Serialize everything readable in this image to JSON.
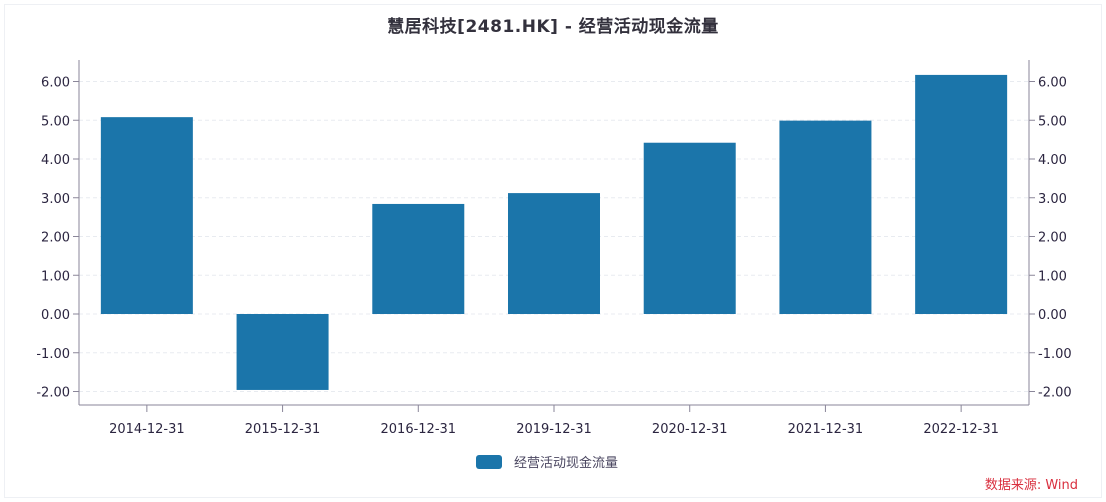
{
  "header": {
    "title": "慧居科技[2481.HK] - 经营活动现金流量"
  },
  "legend": {
    "label": "经营活动现金流量"
  },
  "source": "数据来源: Wind",
  "colors": {
    "bar": "#1b75aa",
    "axis": "#8a8699",
    "grid": "#e8ebf0",
    "source_text": "#d9303f"
  },
  "chart_data": {
    "type": "bar",
    "title": "慧居科技[2481.HK] - 经营活动现金流量",
    "xlabel": "",
    "ylabel": "",
    "categories": [
      "2014-12-31",
      "2015-12-31",
      "2016-12-31",
      "2019-12-31",
      "2020-12-31",
      "2021-12-31",
      "2022-12-31"
    ],
    "series": [
      {
        "name": "经营活动现金流量",
        "values": [
          5.08,
          -1.96,
          2.84,
          3.12,
          4.42,
          4.99,
          6.17
        ]
      }
    ],
    "ylim": [
      -2.0,
      6.0
    ],
    "yticks": [
      "6.00",
      "5.00",
      "4.00",
      "3.00",
      "2.00",
      "1.00",
      "0.00",
      "-1.00",
      "-2.00"
    ],
    "y2ticks": [
      "6.00",
      "5.00",
      "4.00",
      "3.00",
      "2.00",
      "1.00",
      "0.00",
      "-1.00",
      "-2.00"
    ],
    "grid": true,
    "legend_position": "bottom",
    "annotation": "数据来源: Wind"
  }
}
